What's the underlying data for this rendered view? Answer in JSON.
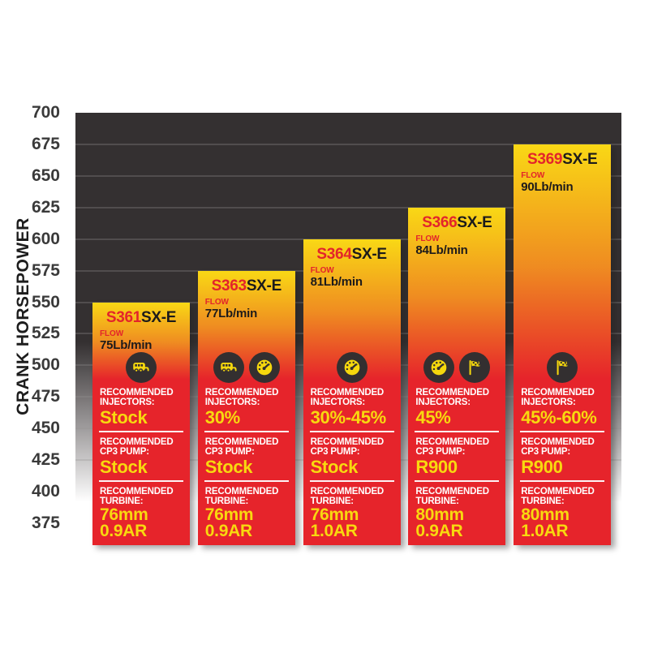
{
  "chart_data": {
    "type": "bar",
    "title": "",
    "xlabel": "",
    "ylabel": "CRANK HORSEPOWER",
    "ylim": [
      375,
      700
    ],
    "yticks": [
      700,
      675,
      650,
      625,
      600,
      575,
      550,
      525,
      500,
      475,
      450,
      425,
      400,
      375
    ],
    "grid": true,
    "legend_position": "none",
    "categories": [
      "S361SX-E",
      "S363SX-E",
      "S364SX-E",
      "S366SX-E",
      "S369SX-E"
    ],
    "values": [
      550,
      575,
      600,
      625,
      675
    ],
    "bars": [
      {
        "model_prefix": "S361",
        "model_suffix": "SX-E",
        "flow_value": "75Lb/min",
        "hp": 550,
        "icons": [
          "rv-towing-icon"
        ],
        "injectors_value": "Stock",
        "cp3_value": "Stock",
        "turbine_value_line1": "76mm",
        "turbine_value_line2": "0.9AR"
      },
      {
        "model_prefix": "S363",
        "model_suffix": "SX-E",
        "flow_value": "77Lb/min",
        "hp": 575,
        "icons": [
          "rv-towing-icon",
          "speedometer-icon"
        ],
        "injectors_value": "30%",
        "cp3_value": "Stock",
        "turbine_value_line1": "76mm",
        "turbine_value_line2": "0.9AR"
      },
      {
        "model_prefix": "S364",
        "model_suffix": "SX-E",
        "flow_value": "81Lb/min",
        "hp": 600,
        "icons": [
          "speedometer-icon"
        ],
        "injectors_value": "30%-45%",
        "cp3_value": "Stock",
        "turbine_value_line1": "76mm",
        "turbine_value_line2": "1.0AR"
      },
      {
        "model_prefix": "S366",
        "model_suffix": "SX-E",
        "flow_value": "84Lb/min",
        "hp": 625,
        "icons": [
          "speedometer-icon",
          "race-flag-icon"
        ],
        "injectors_value": "45%",
        "cp3_value": "R900",
        "turbine_value_line1": "80mm",
        "turbine_value_line2": "0.9AR"
      },
      {
        "model_prefix": "S369",
        "model_suffix": "SX-E",
        "flow_value": "90Lb/min",
        "hp": 675,
        "icons": [
          "race-flag-icon"
        ],
        "injectors_value": "45%-60%",
        "cp3_value": "R900",
        "turbine_value_line1": "80mm",
        "turbine_value_line2": "1.0AR"
      }
    ]
  },
  "shared_labels": {
    "flow": "FLOW",
    "injectors_line1": "RECOMMENDED",
    "injectors_line2": "INJECTORS:",
    "cp3_line1": "RECOMMENDED",
    "cp3_line2": "CP3 PUMP:",
    "turbine_line1": "RECOMMENDED",
    "turbine_line2": "TURBINE:"
  },
  "colors": {
    "plot_background_dark": "#343031",
    "plot_fade_bottom": "#ffffff",
    "bar_gradient_yellow": "#f9d815",
    "bar_gradient_orange": "#ef8c21",
    "bar_gradient_red": "#e6242b",
    "model_number_red": "#e3242b",
    "value_yellow": "#f8d90f",
    "label_white": "#ffffff",
    "icon_circle_dark": "#332f30",
    "tick_text": "#3a3a3a"
  },
  "icon_names": [
    "rv-towing-icon",
    "speedometer-icon",
    "race-flag-icon"
  ]
}
